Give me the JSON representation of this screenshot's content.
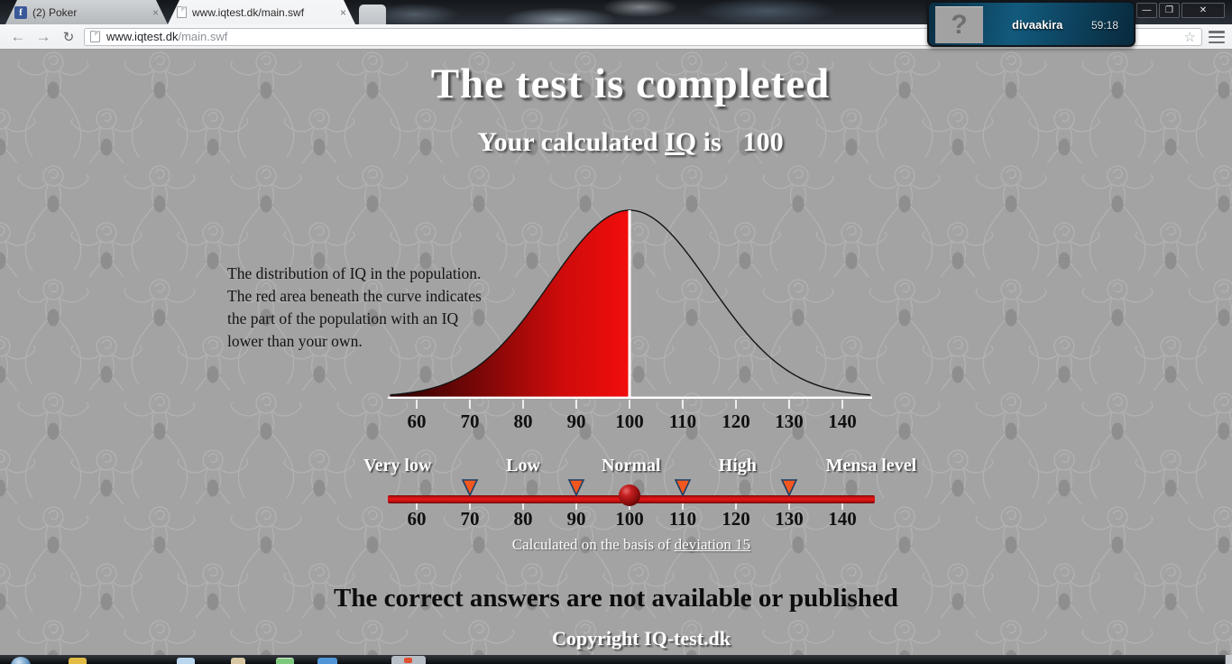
{
  "browser": {
    "tabs": [
      {
        "label": "(2) Poker",
        "icon": "facebook-icon",
        "close": "×",
        "active": false
      },
      {
        "label": "www.iqtest.dk/main.swf",
        "icon": "page-icon",
        "close": "×",
        "active": true
      }
    ],
    "nav": {
      "back": "←",
      "forward": "→",
      "reload": "↻"
    },
    "address": {
      "domain": "www.iqtest.dk",
      "path": "/main.swf",
      "star": "☆"
    },
    "window_controls": {
      "minimize": "—",
      "maximize": "❐",
      "close": "✕"
    }
  },
  "overlay": {
    "avatar_glyph": "?",
    "username": "divaakira",
    "timer": "59:18"
  },
  "page": {
    "title": "The test is completed",
    "subtitle": {
      "pre": "Your calculated ",
      "iq": "IQ",
      "is": " is",
      "value": "100"
    },
    "description": {
      "line1": "The distribution of IQ in the population.",
      "line2": "The red area beneath the curve indicates",
      "line3": "the part of the population with an IQ",
      "line4": "lower than your own."
    },
    "deviation": {
      "pre": "Calculated on the basis of ",
      "link": "deviation 15"
    },
    "footer_note": "The correct answers are not available or published",
    "copyright": "Copyright IQ-test.dk"
  },
  "chart_data": {
    "type": "area",
    "title": "IQ distribution bell curve",
    "mean": 100,
    "sigma": 15,
    "xlim": [
      55,
      145.5
    ],
    "ticks": [
      60,
      70,
      80,
      90,
      100,
      110,
      120,
      130,
      140
    ],
    "red_area_upper_iq": 100,
    "red_area_fraction": 0.5,
    "note": "red area under curve = part of population with IQ lower than user's IQ of 100"
  },
  "slider": {
    "categories": [
      {
        "text": "Very low",
        "iq": 56.4
      },
      {
        "text": "Low",
        "iq": 80
      },
      {
        "text": "Normal",
        "iq": 100.3
      },
      {
        "text": "High",
        "iq": 120.3
      },
      {
        "text": "Mensa level",
        "iq": 145.4
      }
    ],
    "markers": [
      70,
      90,
      110,
      130
    ],
    "ball_iq": 100,
    "ticks": [
      60,
      70,
      80,
      90,
      100,
      110,
      120,
      130,
      140
    ]
  },
  "colors": {
    "red_bright": "#ef0d0d",
    "red_dark": "#2b0202",
    "bar_red": "#df1212",
    "triangle_orange": "#f2571f",
    "triangle_border": "#1d3f66",
    "overlay_teal": "#125a7d",
    "facebook_blue": "#3b5998",
    "background_gray": "#a3a3a3"
  }
}
